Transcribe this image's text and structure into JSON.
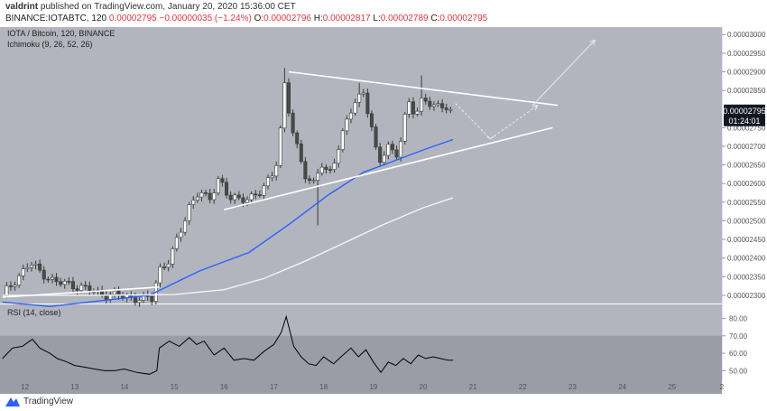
{
  "header": {
    "author": "valdrint",
    "published": "published on TradingView.com, January 20, 2020 15:36:00 CET"
  },
  "ohlc": {
    "symbol": "BINANCE:IOTABTC, 120",
    "last": "0.00002795",
    "change": "−0.00000035 (−1.24%)",
    "open_label": "O:",
    "open": "0.00002796",
    "high_label": "H:",
    "high": "0.00002817",
    "low_label": "L:",
    "low": "0.00002789",
    "close_label": "C:",
    "close": "0.00002795"
  },
  "legend": {
    "pair": "IOTA / Bitcoin, 120, BINANCE",
    "ichimoku": "Ichimoku (9, 26, 52, 26)",
    "rsi": "RSI (14, close)"
  },
  "price_tag": {
    "price": "0.00002795",
    "countdown": "01:24:01"
  },
  "footer": {
    "brand": "TradingView"
  },
  "colors": {
    "pane_bg": "#b2b5be",
    "candle": "#ffffff",
    "candle_border": "#3a3a3a",
    "blue_ma": "#2962ff",
    "white_ma": "#f4f4f4",
    "rsi_line": "#000000",
    "rsi_band": "#9598a1",
    "price_tag_bg": "#131722"
  },
  "chart_data": [
    {
      "type": "candlestick",
      "title": "IOTA / Bitcoin, 120, BINANCE",
      "x_ticks": [
        "12",
        "13",
        "14",
        "15",
        "16",
        "17",
        "18",
        "19",
        "20",
        "21",
        "22",
        "23",
        "24",
        "25",
        "2"
      ],
      "x_range": [
        11.5,
        26.0
      ],
      "ylim": [
        2.278e-05,
        3.02e-05
      ],
      "y_ticks": [
        "0.00003000",
        "0.00002950",
        "0.00002900",
        "0.00002850",
        "0.00002750",
        "0.00002700",
        "0.00002650",
        "0.00002600",
        "0.00002550",
        "0.00002500",
        "0.00002450",
        "0.00002400",
        "0.00002350",
        "0.00002300"
      ],
      "grid": false,
      "close_path": [
        [
          11.55,
          2.3e-05
        ],
        [
          11.8,
          2.34e-05
        ],
        [
          12.1,
          2.385e-05
        ],
        [
          12.35,
          2.36e-05
        ],
        [
          12.6,
          2.335e-05
        ],
        [
          12.9,
          2.33e-05
        ],
        [
          13.2,
          2.318e-05
        ],
        [
          13.5,
          2.305e-05
        ],
        [
          13.8,
          2.3e-05
        ],
        [
          14.1,
          2.295e-05
        ],
        [
          14.35,
          2.29e-05
        ],
        [
          14.55,
          2.29e-05
        ],
        [
          14.7,
          2.37e-05
        ],
        [
          14.9,
          2.395e-05
        ],
        [
          15.1,
          2.46e-05
        ],
        [
          15.3,
          2.54e-05
        ],
        [
          15.5,
          2.58e-05
        ],
        [
          15.7,
          2.55e-05
        ],
        [
          15.9,
          2.62e-05
        ],
        [
          16.1,
          2.56e-05
        ],
        [
          16.3,
          2.555e-05
        ],
        [
          16.5,
          2.565e-05
        ],
        [
          16.75,
          2.575e-05
        ],
        [
          16.95,
          2.62e-05
        ],
        [
          17.1,
          2.68e-05
        ],
        [
          17.2,
          2.88e-05
        ],
        [
          17.35,
          2.75e-05
        ],
        [
          17.5,
          2.68e-05
        ],
        [
          17.65,
          2.62e-05
        ],
        [
          17.8,
          2.6e-05
        ],
        [
          17.95,
          2.65e-05
        ],
        [
          18.1,
          2.62e-05
        ],
        [
          18.3,
          2.7e-05
        ],
        [
          18.5,
          2.78e-05
        ],
        [
          18.65,
          2.82e-05
        ],
        [
          18.8,
          2.85e-05
        ],
        [
          18.95,
          2.76e-05
        ],
        [
          19.1,
          2.65e-05
        ],
        [
          19.3,
          2.7e-05
        ],
        [
          19.5,
          2.68e-05
        ],
        [
          19.7,
          2.82e-05
        ],
        [
          19.85,
          2.78e-05
        ],
        [
          20.0,
          2.84e-05
        ],
        [
          20.2,
          2.8e-05
        ],
        [
          20.4,
          2.81e-05
        ],
        [
          20.55,
          2.795e-05
        ]
      ],
      "spikes": [
        {
          "x": 17.2,
          "high": 2.91e-05
        },
        {
          "x": 17.9,
          "low": 2.488e-05
        },
        {
          "x": 18.7,
          "high": 2.87e-05
        },
        {
          "x": 19.95,
          "high": 2.89e-05
        }
      ],
      "series": [
        {
          "name": "",
          "kind": "blue_ma",
          "points": [
            [
              11.55,
              2.282e-05
            ],
            [
              12.5,
              2.27e-05
            ],
            [
              13.5,
              2.285e-05
            ],
            [
              14.5,
              2.3e-05
            ],
            [
              15.5,
              2.365e-05
            ],
            [
              16.5,
              2.415e-05
            ],
            [
              17.3,
              2.49e-05
            ],
            [
              18.1,
              2.57e-05
            ],
            [
              18.8,
              2.63e-05
            ],
            [
              19.5,
              2.665e-05
            ],
            [
              20.1,
              2.695e-05
            ],
            [
              20.6,
              2.718e-05
            ]
          ]
        },
        {
          "name": "",
          "kind": "white_ma",
          "points": [
            [
              11.55,
              2.3e-05
            ],
            [
              13.5,
              2.3e-05
            ],
            [
              15.0,
              2.302e-05
            ],
            [
              16.0,
              2.315e-05
            ],
            [
              16.8,
              2.345e-05
            ],
            [
              17.6,
              2.39e-05
            ],
            [
              18.4,
              2.44e-05
            ],
            [
              19.2,
              2.49e-05
            ],
            [
              20.0,
              2.535e-05
            ],
            [
              20.6,
              2.562e-05
            ]
          ]
        }
      ],
      "trendlines": [
        {
          "from": [
            17.3,
            2.9e-05
          ],
          "to": [
            22.7,
            2.81e-05
          ]
        },
        {
          "from": [
            16.0,
            2.53e-05
          ],
          "to": [
            22.6,
            2.75e-05
          ]
        },
        {
          "from": [
            11.55,
            2.295e-05
          ],
          "to": [
            14.7,
            2.322e-05
          ]
        }
      ],
      "projections": [
        {
          "points": [
            [
              20.65,
              2.815e-05
            ],
            [
              21.35,
              2.72e-05
            ],
            [
              22.3,
              2.81e-05
            ]
          ],
          "dashed": true
        },
        {
          "points": [
            [
              22.2,
              2.81e-05
            ],
            [
              23.45,
              2.985e-05
            ]
          ],
          "dashed": false
        }
      ]
    },
    {
      "type": "line",
      "title": "RSI (14, close)",
      "ylim": [
        44,
        88
      ],
      "y_ticks": [
        "80.00",
        "70.00",
        "60.00",
        "50.00"
      ],
      "band": [
        30,
        70
      ],
      "series": [
        {
          "name": "RSI (14, close)",
          "points": [
            [
              11.55,
              57
            ],
            [
              11.75,
              63
            ],
            [
              11.95,
              64
            ],
            [
              12.15,
              68
            ],
            [
              12.3,
              63
            ],
            [
              12.5,
              60
            ],
            [
              12.65,
              57
            ],
            [
              12.85,
              55
            ],
            [
              13.0,
              53
            ],
            [
              13.2,
              52
            ],
            [
              13.4,
              51
            ],
            [
              13.6,
              50
            ],
            [
              13.8,
              50
            ],
            [
              14.0,
              51
            ],
            [
              14.25,
              49
            ],
            [
              14.5,
              48
            ],
            [
              14.65,
              50
            ],
            [
              14.7,
              63
            ],
            [
              14.9,
              67
            ],
            [
              15.1,
              64
            ],
            [
              15.3,
              69
            ],
            [
              15.45,
              65
            ],
            [
              15.6,
              67
            ],
            [
              15.8,
              59
            ],
            [
              16.0,
              63
            ],
            [
              16.2,
              56
            ],
            [
              16.4,
              57
            ],
            [
              16.6,
              56
            ],
            [
              16.8,
              61
            ],
            [
              17.0,
              65
            ],
            [
              17.15,
              72
            ],
            [
              17.25,
              81
            ],
            [
              17.4,
              64
            ],
            [
              17.55,
              58
            ],
            [
              17.7,
              54
            ],
            [
              17.85,
              53
            ],
            [
              18.0,
              58
            ],
            [
              18.2,
              54
            ],
            [
              18.35,
              58
            ],
            [
              18.55,
              63
            ],
            [
              18.7,
              58
            ],
            [
              18.85,
              62
            ],
            [
              19.0,
              55
            ],
            [
              19.15,
              49
            ],
            [
              19.3,
              55
            ],
            [
              19.45,
              53
            ],
            [
              19.6,
              57
            ],
            [
              19.75,
              54
            ],
            [
              19.9,
              59
            ],
            [
              20.05,
              57
            ],
            [
              20.2,
              58
            ],
            [
              20.35,
              57
            ],
            [
              20.5,
              56
            ],
            [
              20.6,
              56
            ]
          ]
        }
      ]
    }
  ]
}
